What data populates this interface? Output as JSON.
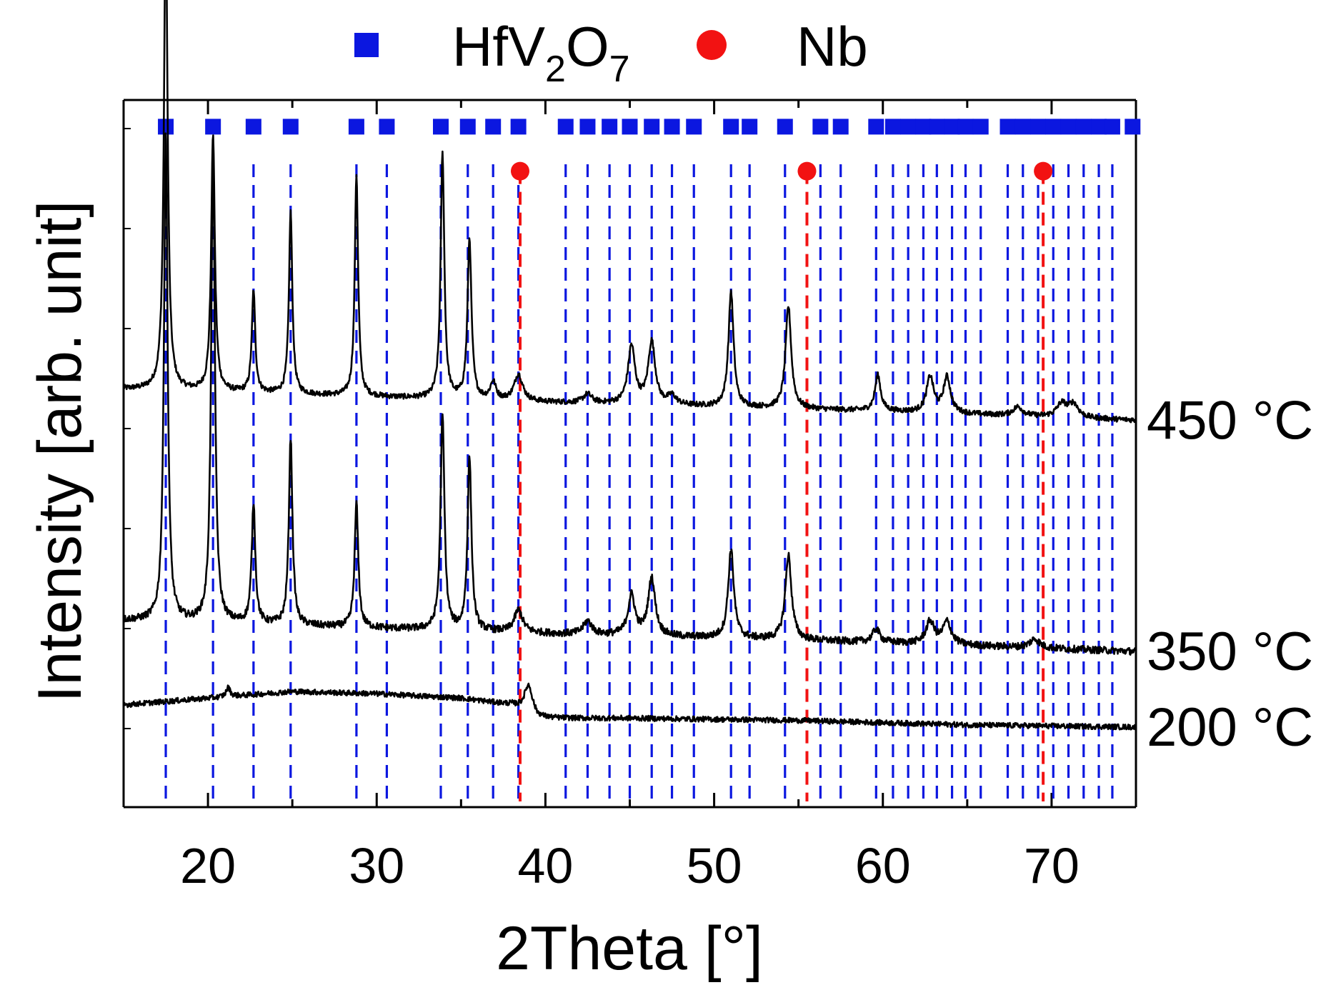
{
  "chart_data": {
    "type": "line",
    "title": "",
    "xlabel": "2Theta [°]",
    "ylabel": "Intensity [arb. unit]",
    "xlim": [
      15,
      75
    ],
    "xticks": [
      20,
      30,
      40,
      50,
      60,
      70
    ],
    "xtick_labels": [
      "20",
      "30",
      "40",
      "50",
      "60",
      "70"
    ],
    "ylim": [
      -2.3,
      13.6
    ],
    "grid": false,
    "colors": {
      "hfv2o7": "#0b17e0",
      "nb": "#f21212",
      "trace": "#000000",
      "background": "#ffffff"
    },
    "legend": {
      "placement": "top",
      "entries": [
        {
          "name": "HfV2O7",
          "base": "HfV",
          "sub1": "2",
          "mid": "O",
          "sub2": "7",
          "marker": "square"
        },
        {
          "name": "Nb",
          "marker": "circle"
        }
      ]
    },
    "reference_lines": {
      "hfv2o7_positions": [
        17.5,
        20.3,
        22.7,
        24.9,
        28.8,
        30.6,
        33.8,
        35.4,
        36.9,
        38.4,
        41.2,
        42.5,
        43.8,
        45.0,
        46.3,
        47.5,
        48.8,
        51.0,
        52.1,
        54.2,
        56.3,
        57.5,
        59.6,
        60.6,
        61.5,
        62.4,
        63.2,
        64.1,
        64.9,
        65.8,
        67.4,
        68.3,
        69.2,
        70.1,
        71.0,
        71.9,
        72.8,
        73.6
      ],
      "hfv2o7_marker_positions": [
        17.5,
        20.3,
        22.7,
        24.9,
        28.8,
        30.6,
        33.8,
        35.4,
        36.9,
        38.4,
        41.2,
        42.5,
        43.8,
        45.0,
        46.3,
        47.5,
        48.8,
        51.0,
        52.1,
        54.2,
        56.3,
        57.5,
        59.6,
        60.6,
        61.5,
        62.4,
        63.2,
        64.1,
        64.9,
        65.8,
        67.4,
        68.3,
        69.2,
        70.1,
        71.0,
        71.9,
        72.8,
        73.6,
        74.8
      ],
      "nb_positions": [
        38.5,
        55.5,
        69.5
      ],
      "hfv2o7_marker_y": 13.0,
      "nb_marker_y": 12.0
    },
    "series": [
      {
        "name": "450 °C",
        "label": "450 °C",
        "baseline": [
          [
            15,
            7.1
          ],
          [
            40,
            6.8
          ],
          [
            60,
            6.6
          ],
          [
            75,
            6.4
          ]
        ],
        "noise": 0.06,
        "peaks": [
          [
            17.5,
            10.8,
            0.13
          ],
          [
            20.3,
            5.8,
            0.13
          ],
          [
            22.7,
            2.3,
            0.12
          ],
          [
            24.9,
            4.1,
            0.12
          ],
          [
            28.8,
            5.0,
            0.12
          ],
          [
            33.9,
            5.5,
            0.13
          ],
          [
            35.5,
            3.6,
            0.14
          ],
          [
            36.9,
            0.4,
            0.2
          ],
          [
            38.4,
            0.6,
            0.3
          ],
          [
            42.5,
            0.2,
            0.3
          ],
          [
            45.1,
            1.3,
            0.25
          ],
          [
            46.3,
            1.4,
            0.25
          ],
          [
            47.5,
            0.2,
            0.3
          ],
          [
            51.0,
            2.6,
            0.18
          ],
          [
            54.4,
            2.3,
            0.2
          ],
          [
            59.7,
            0.8,
            0.2
          ],
          [
            62.8,
            0.8,
            0.25
          ],
          [
            63.8,
            0.8,
            0.25
          ],
          [
            68.0,
            0.2,
            0.35
          ],
          [
            70.6,
            0.3,
            0.35
          ],
          [
            71.3,
            0.3,
            0.35
          ]
        ]
      },
      {
        "name": "350 °C",
        "label": "350 °C",
        "baseline": [
          [
            15,
            1.9
          ],
          [
            40,
            1.6
          ],
          [
            60,
            1.4
          ],
          [
            75,
            1.2
          ]
        ],
        "noise": 0.08,
        "peaks": [
          [
            17.5,
            11.0,
            0.13
          ],
          [
            20.3,
            10.8,
            0.13
          ],
          [
            22.7,
            2.7,
            0.13
          ],
          [
            24.9,
            4.2,
            0.13
          ],
          [
            28.8,
            2.8,
            0.13
          ],
          [
            33.9,
            4.8,
            0.14
          ],
          [
            35.5,
            3.9,
            0.14
          ],
          [
            38.4,
            0.5,
            0.3
          ],
          [
            42.5,
            0.3,
            0.3
          ],
          [
            45.1,
            0.9,
            0.25
          ],
          [
            46.3,
            1.3,
            0.25
          ],
          [
            51.0,
            2.0,
            0.2
          ],
          [
            54.4,
            1.9,
            0.22
          ],
          [
            59.6,
            0.3,
            0.25
          ],
          [
            62.8,
            0.5,
            0.3
          ],
          [
            63.8,
            0.5,
            0.3
          ],
          [
            69.0,
            0.2,
            0.35
          ]
        ]
      },
      {
        "name": "200 °C",
        "label": "200 °C",
        "baseline": [
          [
            15,
            0.0
          ],
          [
            20,
            0.15
          ],
          [
            25,
            0.3
          ],
          [
            30,
            0.25
          ],
          [
            35,
            0.15
          ],
          [
            38,
            0.0
          ],
          [
            39.5,
            -0.3
          ],
          [
            45,
            -0.3
          ],
          [
            55,
            -0.35
          ],
          [
            65,
            -0.45
          ],
          [
            75,
            -0.5
          ]
        ],
        "noise": 0.06,
        "peaks": [
          [
            39.0,
            0.65,
            0.3
          ],
          [
            21.2,
            0.2,
            0.15
          ]
        ]
      }
    ]
  }
}
